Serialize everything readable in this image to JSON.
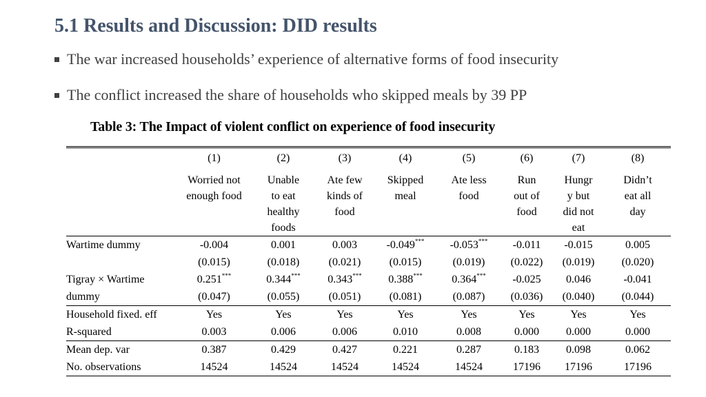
{
  "slide": {
    "title": "5.1 Results and Discussion: DID results",
    "bullets": [
      "The war increased households’ experience of alternative forms of food insecurity",
      "The conflict increased the share of households who skipped meals by 39 PP"
    ]
  },
  "table": {
    "title": "Table 3: The Impact of violent conflict on experience of food insecurity",
    "col_numbers": [
      "(1)",
      "(2)",
      "(3)",
      "(4)",
      "(5)",
      "(6)",
      "(7)",
      "(8)"
    ],
    "col_heads": [
      [
        "Worried not",
        "enough food"
      ],
      [
        "Unable",
        "to eat",
        "healthy",
        "foods"
      ],
      [
        "Ate few",
        "kinds of",
        "food"
      ],
      [
        "Skipped",
        "meal"
      ],
      [
        "Ate less",
        "food"
      ],
      [
        "Run",
        "out of",
        "food"
      ],
      [
        "Hungr",
        "y but",
        "did not",
        "eat"
      ],
      [
        "Didn’t",
        "eat all",
        "day"
      ]
    ],
    "stars": "***",
    "wartime": {
      "label": "Wartime dummy",
      "coef": [
        "-0.004",
        "0.001",
        "0.003",
        "-0.049",
        "-0.053",
        "-0.011",
        "-0.015",
        "0.005"
      ],
      "stars": [
        false,
        false,
        false,
        true,
        true,
        false,
        false,
        false
      ],
      "se": [
        "(0.015)",
        "(0.018)",
        "(0.021)",
        "(0.015)",
        "(0.019)",
        "(0.022)",
        "(0.019)",
        "(0.020)"
      ]
    },
    "tigray": {
      "label1": "Tigray × Wartime",
      "label2": "dummy",
      "coef": [
        "0.251",
        "0.344",
        "0.343",
        "0.388",
        "0.364",
        "-0.025",
        "0.046",
        "-0.041"
      ],
      "stars": [
        true,
        true,
        true,
        true,
        true,
        false,
        false,
        false
      ],
      "se": [
        "(0.047)",
        "(0.055)",
        "(0.051)",
        "(0.081)",
        "(0.087)",
        "(0.036)",
        "(0.040)",
        "(0.044)"
      ]
    },
    "fixed_effects": {
      "label": "Household fixed. eff",
      "values": [
        "Yes",
        "Yes",
        "Yes",
        "Yes",
        "Yes",
        "Yes",
        "Yes",
        "Yes"
      ]
    },
    "r_squared": {
      "label": "R-squared",
      "values": [
        "0.003",
        "0.006",
        "0.006",
        "0.010",
        "0.008",
        "0.000",
        "0.000",
        "0.000"
      ]
    },
    "mean_dep": {
      "label": "Mean dep. var",
      "values": [
        "0.387",
        "0.429",
        "0.427",
        "0.221",
        "0.287",
        "0.183",
        "0.098",
        "0.062"
      ]
    },
    "n_obs": {
      "label": "No. observations",
      "values": [
        "14524",
        "14524",
        "14524",
        "14524",
        "14524",
        "17196",
        "17196",
        "17196"
      ]
    }
  }
}
